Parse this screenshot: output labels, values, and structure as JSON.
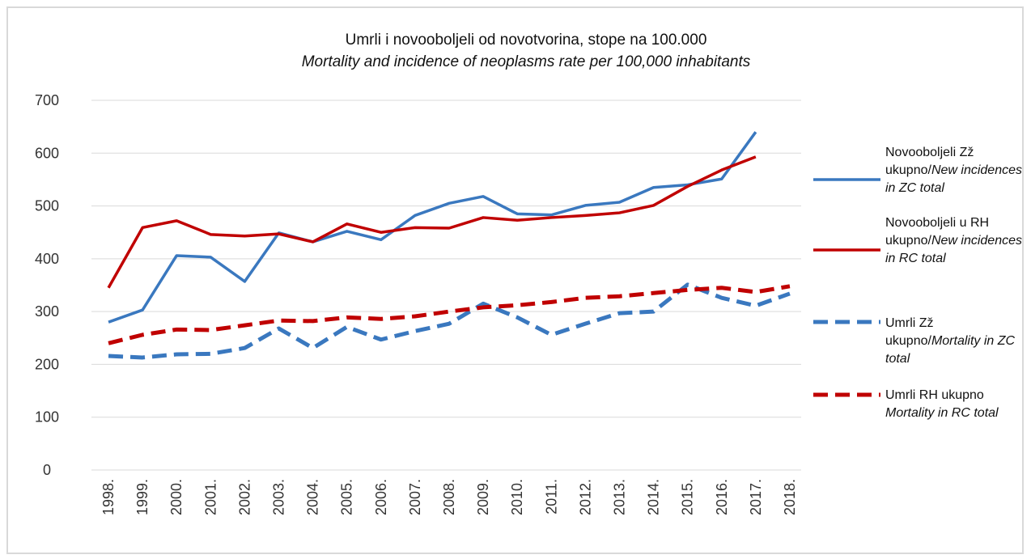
{
  "chart_data": {
    "type": "line",
    "title": "Umrli i novooboljeli od novotvorina, stope na 100.000",
    "subtitle": "Mortality and incidence of neoplasms rate per 100,000 inhabitants",
    "categories": [
      "1998.",
      "1999.",
      "2000.",
      "2001.",
      "2002.",
      "2003.",
      "2004.",
      "2005.",
      "2006.",
      "2007.",
      "2008.",
      "2009.",
      "2010.",
      "2011.",
      "2012.",
      "2013.",
      "2014.",
      "2015.",
      "2016.",
      "2017.",
      "2018."
    ],
    "ylim": [
      0,
      700
    ],
    "yticks": [
      0,
      100,
      200,
      300,
      400,
      500,
      600,
      700
    ],
    "grid": true,
    "legend": "right",
    "series": [
      {
        "name": [
          "Novooboljeli Zž ukupno/",
          "New incidences in ZC total"
        ],
        "color": "#3a78bf",
        "dashed": false,
        "values": [
          280,
          303,
          406,
          403,
          357,
          449,
          432,
          452,
          436,
          482,
          505,
          518,
          485,
          483,
          501,
          507,
          535,
          540,
          551,
          640,
          null
        ]
      },
      {
        "name": [
          "Novooboljeli u RH ukupno/",
          "New incidences in RC total"
        ],
        "color": "#c00000",
        "dashed": false,
        "values": [
          345,
          459,
          472,
          446,
          443,
          447,
          432,
          466,
          450,
          459,
          458,
          478,
          473,
          478,
          482,
          487,
          501,
          537,
          568,
          593,
          null
        ]
      },
      {
        "name": [
          "Umrli Zž ukupno/",
          "Mortality in ZC total"
        ],
        "color": "#3a78bf",
        "dashed": true,
        "values": [
          216,
          213,
          219,
          220,
          231,
          268,
          231,
          271,
          247,
          263,
          277,
          315,
          289,
          256,
          277,
          297,
          300,
          351,
          326,
          311,
          334
        ]
      },
      {
        "name": [
          "Umrli RH ukupno",
          "Mortality in RC total"
        ],
        "color": "#c00000",
        "dashed": true,
        "values": [
          240,
          256,
          266,
          265,
          274,
          283,
          282,
          289,
          286,
          291,
          300,
          308,
          312,
          318,
          326,
          329,
          335,
          341,
          345,
          337,
          348
        ]
      }
    ]
  }
}
